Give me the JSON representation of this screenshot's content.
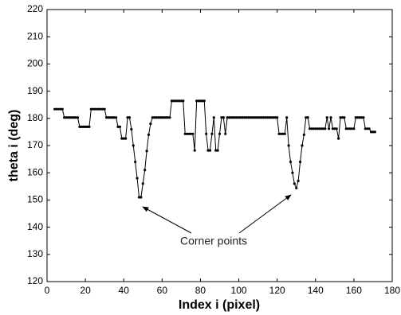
{
  "chart_data": {
    "type": "line",
    "x_label": "Index i (pixel)",
    "y_label": "theta i (deg)",
    "annotation": "Corner points",
    "x": [
      4,
      5,
      6,
      7,
      8,
      9,
      10,
      11,
      12,
      13,
      14,
      15,
      16,
      17,
      18,
      19,
      20,
      21,
      22,
      23,
      24,
      25,
      26,
      27,
      28,
      29,
      30,
      31,
      32,
      33,
      34,
      35,
      36,
      37,
      38,
      39,
      40,
      41,
      42,
      43,
      44,
      45,
      46,
      47,
      48,
      49,
      50,
      51,
      52,
      53,
      54,
      55,
      56,
      57,
      58,
      59,
      60,
      61,
      62,
      63,
      64,
      65,
      66,
      67,
      68,
      69,
      70,
      71,
      72,
      73,
      74,
      75,
      76,
      77,
      78,
      79,
      80,
      81,
      82,
      83,
      84,
      85,
      86,
      87,
      88,
      89,
      90,
      91,
      92,
      93,
      94,
      95,
      96,
      97,
      98,
      99,
      100,
      101,
      102,
      103,
      104,
      105,
      106,
      107,
      108,
      109,
      110,
      111,
      112,
      113,
      114,
      115,
      116,
      117,
      118,
      119,
      120,
      121,
      122,
      123,
      124,
      125,
      126,
      127,
      128,
      129,
      130,
      131,
      132,
      133,
      134,
      135,
      136,
      137,
      138,
      139,
      140,
      141,
      142,
      143,
      144,
      145,
      146,
      147,
      148,
      149,
      150,
      151,
      152,
      153,
      154,
      155,
      156,
      157,
      158,
      159,
      160,
      161,
      162,
      163,
      164,
      165,
      166,
      167,
      168,
      169,
      170,
      171
    ],
    "series": [
      {
        "color": "#000000",
        "values": [
          183.4,
          183.4,
          183.4,
          183.4,
          183.4,
          180.3,
          180.3,
          180.3,
          180.3,
          180.3,
          180.3,
          180.3,
          180.3,
          176.9,
          176.9,
          176.9,
          176.9,
          176.9,
          176.9,
          183.4,
          183.4,
          183.4,
          183.4,
          183.4,
          183.4,
          183.4,
          183.4,
          180.3,
          180.3,
          180.3,
          180.3,
          180.3,
          180.3,
          176.9,
          176.9,
          172.6,
          172.6,
          172.6,
          180.3,
          180.3,
          176,
          170,
          164,
          158,
          151,
          151,
          156,
          161,
          168,
          174,
          178,
          180.3,
          180.3,
          180.3,
          180.3,
          180.3,
          180.3,
          180.3,
          180.3,
          180.3,
          180.3,
          186.4,
          186.4,
          186.4,
          186.4,
          186.4,
          186.4,
          186.4,
          174.3,
          174.3,
          174.3,
          174.3,
          174.3,
          168.2,
          186.4,
          186.4,
          186.4,
          186.4,
          186.4,
          174.3,
          168.2,
          168.2,
          174.3,
          180.3,
          168.2,
          168.2,
          174.3,
          180.3,
          180.3,
          174.3,
          180.3,
          180.3,
          180.3,
          180.3,
          180.3,
          180.3,
          180.3,
          180.3,
          180.3,
          180.3,
          180.3,
          180.3,
          180.3,
          180.3,
          180.3,
          180.3,
          180.3,
          180.3,
          180.3,
          180.3,
          180.3,
          180.3,
          180.3,
          180.3,
          180.3,
          180.3,
          180.3,
          174.3,
          174.3,
          174.3,
          174.3,
          180.3,
          170,
          164,
          160,
          156,
          154.4,
          157,
          164,
          170,
          174,
          180.3,
          180.3,
          176.2,
          176.2,
          176.2,
          176.2,
          176.2,
          176.2,
          176.2,
          176.2,
          176.2,
          180.3,
          176.2,
          180.3,
          176.2,
          176.2,
          176.2,
          172.6,
          180.3,
          180.3,
          180.3,
          176.2,
          176.2,
          176.2,
          176.2,
          176.2,
          180.3,
          180.3,
          180.3,
          180.3,
          180.3,
          176.2,
          176.2,
          176.2,
          175,
          175,
          175
        ]
      }
    ],
    "xlim": [
      0,
      180
    ],
    "xticks": [
      0,
      20,
      40,
      60,
      80,
      100,
      120,
      140,
      160,
      180
    ],
    "ylim": [
      120,
      220
    ],
    "yticks": [
      120,
      130,
      140,
      150,
      160,
      170,
      180,
      190,
      200,
      210,
      220
    ],
    "grid": false,
    "markers": true
  }
}
